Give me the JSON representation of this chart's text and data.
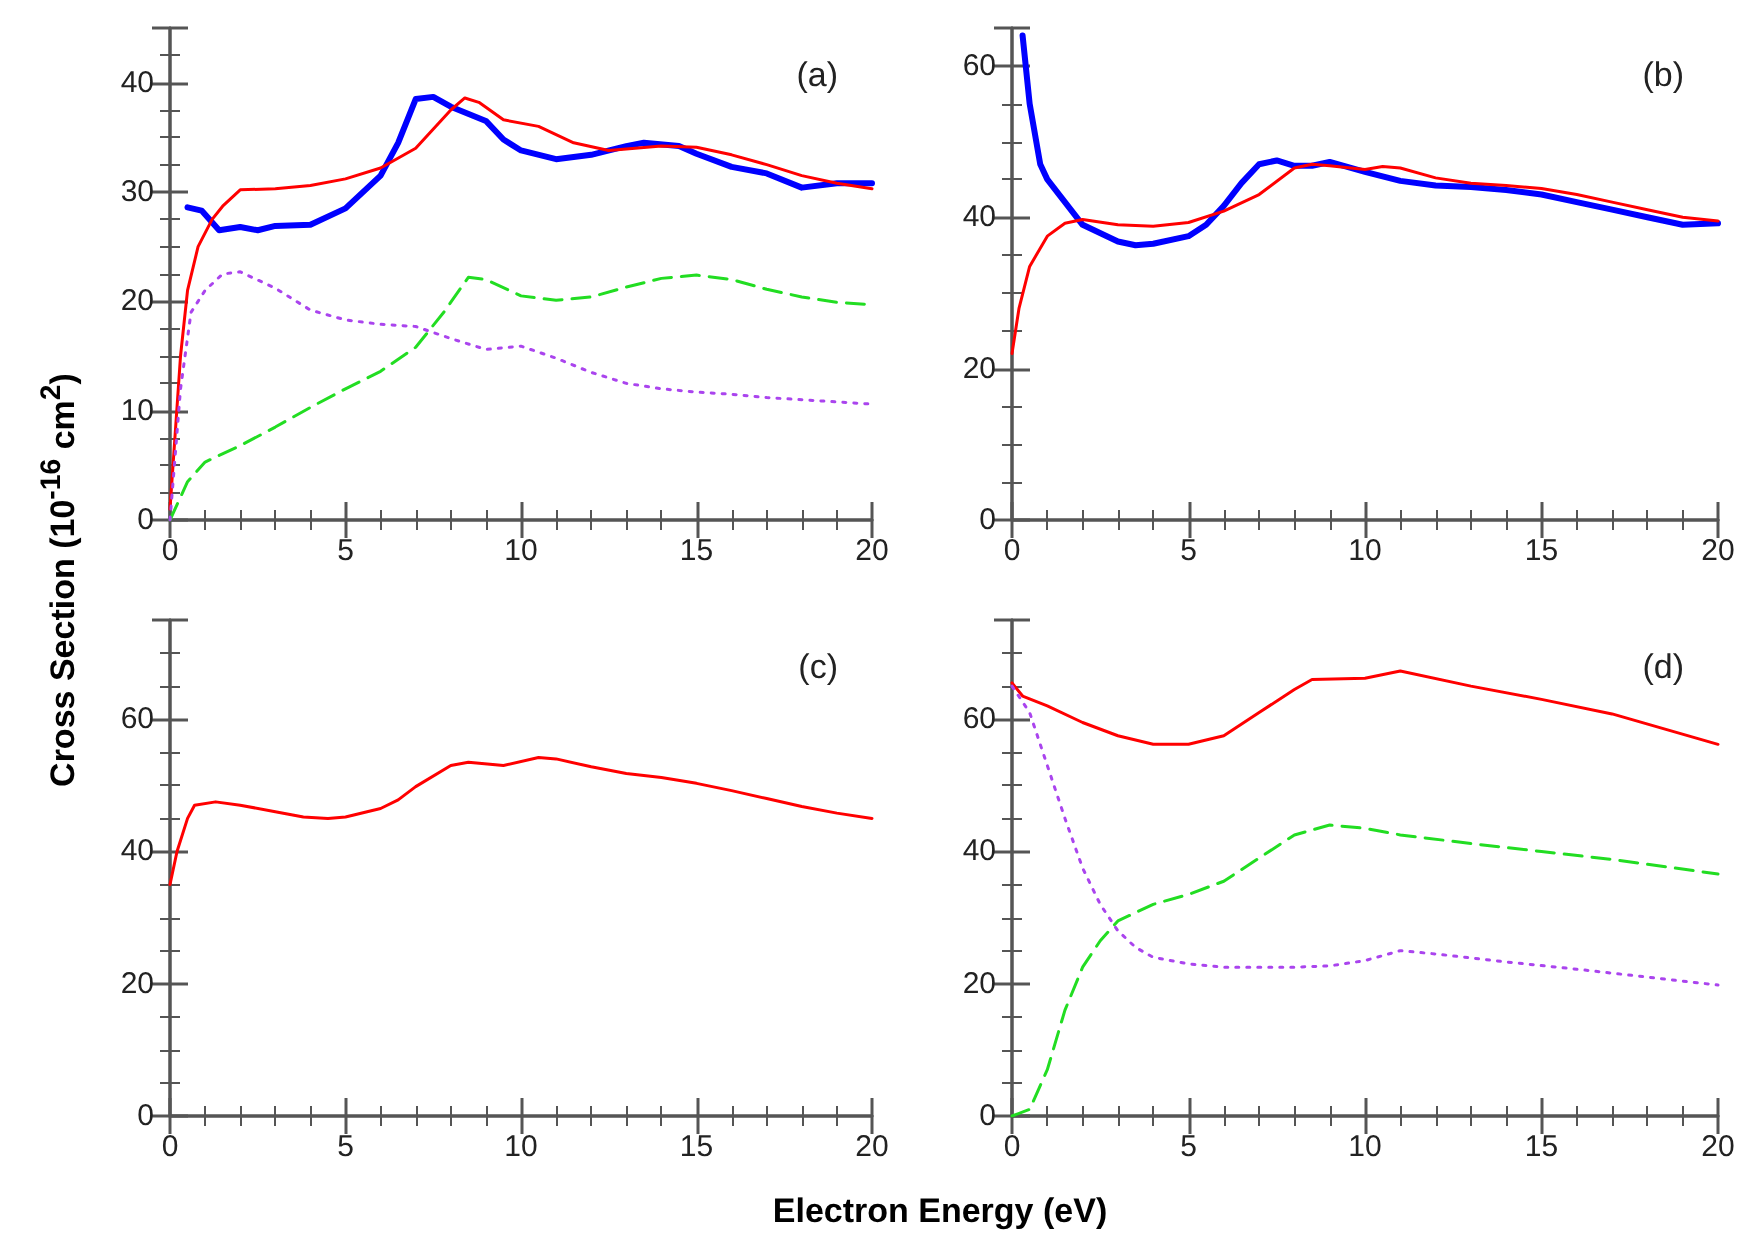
{
  "chart_data": [
    {
      "type": "line",
      "title": "(a)",
      "ylabel": "Cross Section (10$^{-16}$ cm$^{2}$)",
      "xlim": [
        0,
        20
      ],
      "xticks": [
        0,
        5,
        10,
        15,
        20
      ],
      "ylim": [
        0,
        45
      ],
      "yticks": [
        0,
        10,
        20,
        30,
        40
      ],
      "grid": false,
      "marker": "none",
      "series": [
        {
          "color": "#0000ff",
          "line_style": "solid",
          "x": [
            0.5,
            0.9,
            1.4,
            2,
            2.5,
            3,
            4,
            5,
            6,
            6.5,
            7,
            7.5,
            8,
            9,
            9.5,
            10,
            11,
            12,
            13,
            13.5,
            14.5,
            15,
            16,
            17,
            18,
            19,
            20
          ],
          "values": [
            28.6,
            28.3,
            26.5,
            26.8,
            26.5,
            26.9,
            27.0,
            28.5,
            31.5,
            34.5,
            38.5,
            38.7,
            37.8,
            36.5,
            34.8,
            33.8,
            33.0,
            33.4,
            34.2,
            34.5,
            34.2,
            33.5,
            32.3,
            31.7,
            30.4,
            30.8,
            30.8
          ]
        },
        {
          "color": "#ff0000",
          "line_style": "solid",
          "x": [
            0,
            0.3,
            0.5,
            0.8,
            1.2,
            1.5,
            2,
            3,
            4,
            5,
            6,
            7,
            8,
            8.4,
            8.8,
            9.5,
            10.5,
            11.5,
            12.5,
            14,
            15,
            16,
            17,
            18,
            19,
            20
          ],
          "values": [
            1,
            15,
            21,
            25,
            27.5,
            28.7,
            30.2,
            30.3,
            30.6,
            31.2,
            32.2,
            34,
            37.5,
            38.6,
            38.2,
            36.6,
            36.0,
            34.5,
            33.8,
            34.2,
            34.1,
            33.4,
            32.5,
            31.5,
            30.8,
            30.3
          ]
        },
        {
          "color": "#22dd22",
          "line_style": "dashed",
          "x": [
            0,
            0.5,
            1,
            2,
            3,
            4,
            5,
            6,
            7,
            7.8,
            8.5,
            9,
            10,
            11,
            12,
            13,
            14,
            15,
            16,
            17,
            18,
            19,
            20
          ],
          "values": [
            0,
            3.5,
            5.3,
            6.8,
            8.5,
            10.3,
            12.0,
            13.6,
            15.8,
            19,
            22.2,
            22.0,
            20.5,
            20.1,
            20.4,
            21.3,
            22.1,
            22.4,
            22.0,
            21.1,
            20.4,
            19.9,
            19.7
          ]
        },
        {
          "color": "#aa44ee",
          "line_style": "dotted",
          "x": [
            0,
            0.3,
            0.6,
            1,
            1.5,
            2,
            3,
            4,
            5,
            6,
            7,
            8,
            9,
            10,
            11,
            12,
            13,
            14,
            15,
            16,
            17,
            18,
            19,
            20
          ],
          "values": [
            0,
            12,
            19,
            21,
            22.5,
            22.7,
            21.2,
            19.2,
            18.3,
            17.9,
            17.7,
            16.6,
            15.6,
            15.9,
            14.8,
            13.5,
            12.5,
            12.0,
            11.7,
            11.5,
            11.2,
            11.0,
            10.8,
            10.6
          ]
        }
      ]
    },
    {
      "type": "line",
      "title": "(b)",
      "xlim": [
        0,
        20
      ],
      "xticks": [
        0,
        5,
        10,
        15,
        20
      ],
      "ylim": [
        0,
        65
      ],
      "yticks": [
        0,
        20,
        40,
        60
      ],
      "grid": false,
      "marker": "none",
      "series": [
        {
          "color": "#0000ff",
          "line_style": "solid",
          "x": [
            0.3,
            0.5,
            0.8,
            1,
            1.5,
            2,
            3,
            3.5,
            4,
            5,
            5.5,
            6,
            6.5,
            7,
            7.5,
            8,
            8.5,
            9,
            10,
            11,
            12,
            13,
            14,
            15,
            16,
            17,
            18,
            19,
            20
          ],
          "values": [
            64,
            55,
            47,
            45,
            42,
            39,
            36.8,
            36.3,
            36.5,
            37.5,
            39,
            41.5,
            44.5,
            47,
            47.5,
            46.8,
            46.8,
            47.3,
            46,
            44.8,
            44.2,
            44.0,
            43.6,
            43.0,
            42,
            41,
            40,
            39,
            39.2
          ]
        },
        {
          "color": "#ff0000",
          "line_style": "solid",
          "x": [
            0,
            0.2,
            0.5,
            1,
            1.5,
            2,
            3,
            4,
            5,
            6,
            7,
            8,
            8.5,
            9,
            10,
            10.5,
            11,
            12,
            13,
            14,
            15,
            16,
            17,
            18,
            19,
            20
          ],
          "values": [
            22,
            28,
            33.5,
            37.5,
            39.2,
            39.7,
            39.0,
            38.8,
            39.3,
            40.8,
            43,
            46.5,
            47,
            46.8,
            46.3,
            46.7,
            46.5,
            45.2,
            44.5,
            44.2,
            43.8,
            43,
            42,
            41,
            40,
            39.5
          ]
        }
      ]
    },
    {
      "type": "line",
      "title": "(c)",
      "xlim": [
        0,
        20
      ],
      "xticks": [
        0,
        5,
        10,
        15,
        20
      ],
      "ylim": [
        0,
        75
      ],
      "yticks": [
        0,
        20,
        40,
        60
      ],
      "grid": false,
      "marker": "none",
      "series": [
        {
          "color": "#ff0000",
          "line_style": "solid",
          "x": [
            0,
            0.2,
            0.5,
            0.7,
            1.3,
            2,
            3,
            3.8,
            4.5,
            5,
            6,
            6.5,
            7,
            8,
            8.5,
            9.5,
            10.5,
            11,
            12,
            13,
            14,
            15,
            16,
            17,
            18,
            19,
            20
          ],
          "values": [
            35,
            40,
            45,
            47,
            47.5,
            47,
            46,
            45.2,
            45,
            45.2,
            46.5,
            47.8,
            49.8,
            53,
            53.5,
            53,
            54.2,
            54,
            52.8,
            51.8,
            51.2,
            50.3,
            49.2,
            48,
            46.8,
            45.8,
            45
          ]
        }
      ]
    },
    {
      "type": "line",
      "title": "(d)",
      "xlabel": "Electron Energy (eV)",
      "xlim": [
        0,
        20
      ],
      "xticks": [
        0,
        5,
        10,
        15,
        20
      ],
      "ylim": [
        0,
        75
      ],
      "yticks": [
        0,
        20,
        40,
        60
      ],
      "grid": false,
      "marker": "none",
      "series": [
        {
          "color": "#ff0000",
          "line_style": "solid",
          "x": [
            0,
            0.3,
            1,
            2,
            3,
            4,
            5,
            6,
            7,
            8,
            8.5,
            10,
            11,
            13,
            15,
            17,
            20
          ],
          "values": [
            65.5,
            63.5,
            62,
            59.5,
            57.5,
            56.2,
            56.2,
            57.5,
            61,
            64.5,
            66,
            66.2,
            67.3,
            65,
            63,
            60.8,
            56.2
          ]
        },
        {
          "color": "#22dd22",
          "line_style": "dashed",
          "x": [
            0,
            0.5,
            1,
            1.5,
            2,
            2.5,
            3,
            4,
            5,
            6,
            7,
            8,
            9,
            10,
            11,
            13,
            15,
            17,
            20
          ],
          "values": [
            0,
            1,
            7,
            16,
            22.5,
            26.5,
            29.5,
            32,
            33.5,
            35.5,
            39,
            42.5,
            44,
            43.5,
            42.5,
            41.2,
            40,
            38.8,
            36.6
          ]
        },
        {
          "color": "#aa44ee",
          "line_style": "dotted",
          "x": [
            0,
            0.5,
            1,
            1.5,
            2,
            2.5,
            3,
            3.5,
            4,
            5,
            6,
            8,
            9,
            10,
            11,
            12,
            14,
            16,
            18,
            20
          ],
          "values": [
            65,
            61,
            53,
            45,
            37.5,
            32,
            28,
            25.5,
            24,
            23,
            22.5,
            22.5,
            22.7,
            23.5,
            25,
            24.5,
            23.3,
            22.2,
            21,
            19.8
          ]
        }
      ]
    }
  ]
}
